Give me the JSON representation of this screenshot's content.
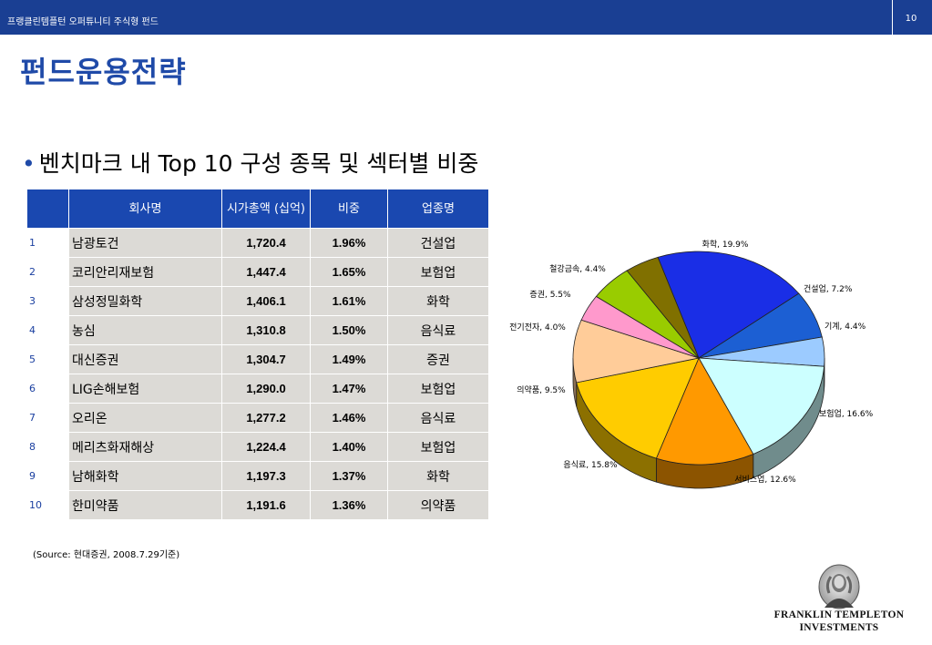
{
  "header": {
    "title": "프랭클린템플턴 오퍼튜니티 주식형 펀드",
    "page_number": "10"
  },
  "heading": "펀드운용전략",
  "bullet": "벤치마크 내 Top 10 구성 종목 및 섹터별 비중",
  "table": {
    "headers": [
      "",
      "회사명",
      "시가총액 (십억)",
      "비중",
      "업종명"
    ],
    "rows": [
      {
        "no": "1",
        "name": "남광토건",
        "cap": "1,720.4",
        "weight": "1.96%",
        "sector": "건설업"
      },
      {
        "no": "2",
        "name": "코리안리재보험",
        "cap": "1,447.4",
        "weight": "1.65%",
        "sector": "보험업"
      },
      {
        "no": "3",
        "name": "삼성정밀화학",
        "cap": "1,406.1",
        "weight": "1.61%",
        "sector": "화학"
      },
      {
        "no": "4",
        "name": "농심",
        "cap": "1,310.8",
        "weight": "1.50%",
        "sector": "음식료"
      },
      {
        "no": "5",
        "name": "대신증권",
        "cap": "1,304.7",
        "weight": "1.49%",
        "sector": "증권"
      },
      {
        "no": "6",
        "name": "LIG손해보험",
        "cap": "1,290.0",
        "weight": "1.47%",
        "sector": "보험업"
      },
      {
        "no": "7",
        "name": "오리온",
        "cap": "1,277.2",
        "weight": "1.46%",
        "sector": "음식료"
      },
      {
        "no": "8",
        "name": "메리츠화재해상",
        "cap": "1,224.4",
        "weight": "1.40%",
        "sector": "보험업"
      },
      {
        "no": "9",
        "name": "남해화학",
        "cap": "1,197.3",
        "weight": "1.37%",
        "sector": "화학"
      },
      {
        "no": "10",
        "name": "한미약품",
        "cap": "1,191.6",
        "weight": "1.36%",
        "sector": "의약품"
      }
    ]
  },
  "source": "(Source: 현대증권, 2008.7.29기준)",
  "chart_data": {
    "type": "pie",
    "title": "",
    "slices": [
      {
        "label": "화학",
        "value": 19.9,
        "text": "화학, 19.9%",
        "color": "#1a2ee6"
      },
      {
        "label": "건설업",
        "value": 7.2,
        "text": "건설업, 7.2%",
        "color": "#1c5fd3"
      },
      {
        "label": "기계",
        "value": 4.4,
        "text": "기계, 4.4%",
        "color": "#9ccbff"
      },
      {
        "label": "보험업",
        "value": 16.6,
        "text": "보험업, 16.6%",
        "color": "#ccffff"
      },
      {
        "label": "서비스업",
        "value": 12.6,
        "text": "서비스업, 12.6%",
        "color": "#ff9900"
      },
      {
        "label": "음식료",
        "value": 15.8,
        "text": "음식료, 15.8%",
        "color": "#ffcc00"
      },
      {
        "label": "의약품",
        "value": 9.5,
        "text": "의약품, 9.5%",
        "color": "#ffcc99"
      },
      {
        "label": "전기전자",
        "value": 4.0,
        "text": "전기전자, 4.0%",
        "color": "#ff99cc"
      },
      {
        "label": "증권",
        "value": 5.5,
        "text": "증권, 5.5%",
        "color": "#99cc00"
      },
      {
        "label": "철강금속",
        "value": 4.4,
        "text": "철강금속, 4.4%",
        "color": "#807000"
      }
    ]
  },
  "logo": {
    "line1": "FRANKLIN TEMPLETON",
    "line2": "INVESTMENTS"
  }
}
